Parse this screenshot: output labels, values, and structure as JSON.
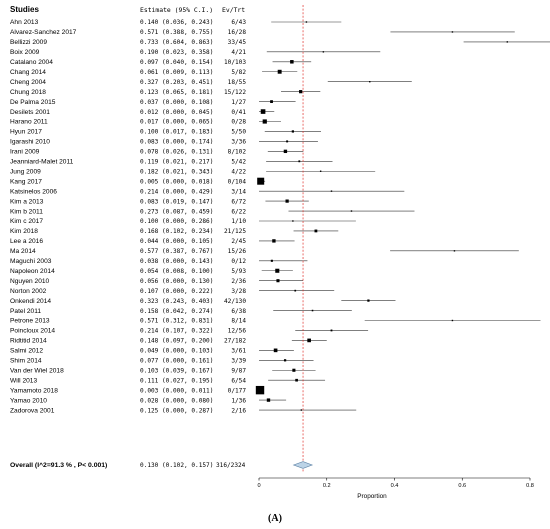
{
  "chart_data": {
    "type": "forest",
    "headers": {
      "studies": "Studies",
      "estimate": "Estimate (95% C.I.)",
      "evtrt": "Ev/Trt"
    },
    "studies": [
      {
        "name": "Ahn 2013",
        "est": 0.14,
        "lo": 0.036,
        "hi": 0.243,
        "ev": "6/43",
        "w": 1
      },
      {
        "name": "Alvarez-Sanchez 2017",
        "est": 0.571,
        "lo": 0.388,
        "hi": 0.755,
        "ev": "16/28",
        "w": 1
      },
      {
        "name": "Bellizzi 2009",
        "est": 0.733,
        "lo": 0.604,
        "hi": 0.863,
        "ev": "33/45",
        "w": 1
      },
      {
        "name": "Boix 2009",
        "est": 0.19,
        "lo": 0.023,
        "hi": 0.358,
        "ev": "4/21",
        "w": 1
      },
      {
        "name": "Catalano 2004",
        "est": 0.097,
        "lo": 0.04,
        "hi": 0.154,
        "ev": "10/103",
        "w": 2.5
      },
      {
        "name": "Chang 2014",
        "est": 0.061,
        "lo": 0.009,
        "hi": 0.113,
        "ev": "5/82",
        "w": 2.8
      },
      {
        "name": "Cheng 2004",
        "est": 0.327,
        "lo": 0.203,
        "hi": 0.451,
        "ev": "18/55",
        "w": 1
      },
      {
        "name": "Chung 2018",
        "est": 0.123,
        "lo": 0.065,
        "hi": 0.181,
        "ev": "15/122",
        "w": 2.3
      },
      {
        "name": "De Palma 2015",
        "est": 0.037,
        "lo": 0.0,
        "hi": 0.108,
        "ev": "1/27",
        "w": 2
      },
      {
        "name": "Desilets 2001",
        "est": 0.012,
        "lo": 0.0,
        "hi": 0.045,
        "ev": "0/41",
        "w": 3.3
      },
      {
        "name": "Harano 2011",
        "est": 0.017,
        "lo": 0.0,
        "hi": 0.065,
        "ev": "0/28",
        "w": 3
      },
      {
        "name": "Hyun 2017",
        "est": 0.1,
        "lo": 0.017,
        "hi": 0.183,
        "ev": "5/50",
        "w": 1.6
      },
      {
        "name": "Igarashi 2010",
        "est": 0.083,
        "lo": 0.0,
        "hi": 0.174,
        "ev": "3/36",
        "w": 1.4
      },
      {
        "name": "Irani 2009",
        "est": 0.078,
        "lo": 0.026,
        "hi": 0.131,
        "ev": "8/102",
        "w": 2.4
      },
      {
        "name": "Jeanniard-Malet 2011",
        "est": 0.119,
        "lo": 0.021,
        "hi": 0.217,
        "ev": "5/42",
        "w": 1.3
      },
      {
        "name": "Jung 2009",
        "est": 0.182,
        "lo": 0.021,
        "hi": 0.343,
        "ev": "4/22",
        "w": 1
      },
      {
        "name": "Kang 2017",
        "est": 0.005,
        "lo": 0.0,
        "hi": 0.018,
        "ev": "0/104",
        "w": 5
      },
      {
        "name": "Katsinelos 2006",
        "est": 0.214,
        "lo": 0.0,
        "hi": 0.429,
        "ev": "3/14",
        "w": 1
      },
      {
        "name": "Kim a 2013",
        "est": 0.083,
        "lo": 0.019,
        "hi": 0.147,
        "ev": "6/72",
        "w": 2.3
      },
      {
        "name": "Kim b 2011",
        "est": 0.273,
        "lo": 0.087,
        "hi": 0.459,
        "ev": "6/22",
        "w": 1
      },
      {
        "name": "Kim c 2017",
        "est": 0.1,
        "lo": 0.0,
        "hi": 0.286,
        "ev": "1/10",
        "w": 1
      },
      {
        "name": "Kim 2018",
        "est": 0.168,
        "lo": 0.102,
        "hi": 0.234,
        "ev": "21/125",
        "w": 2
      },
      {
        "name": "Lee a 2016",
        "est": 0.044,
        "lo": 0.0,
        "hi": 0.105,
        "ev": "2/45",
        "w": 2.4
      },
      {
        "name": "Ma 2014",
        "est": 0.577,
        "lo": 0.387,
        "hi": 0.767,
        "ev": "15/26",
        "w": 1
      },
      {
        "name": "Maguchi 2003",
        "est": 0.038,
        "lo": 0.0,
        "hi": 0.143,
        "ev": "0/12",
        "w": 1.5
      },
      {
        "name": "Napoleon 2014",
        "est": 0.054,
        "lo": 0.008,
        "hi": 0.1,
        "ev": "5/93",
        "w": 2.9
      },
      {
        "name": "Nguyen 2010",
        "est": 0.056,
        "lo": 0.0,
        "hi": 0.13,
        "ev": "2/36",
        "w": 2.2
      },
      {
        "name": "Norton 2002",
        "est": 0.107,
        "lo": 0.0,
        "hi": 0.222,
        "ev": "3/28",
        "w": 1.2
      },
      {
        "name": "Onkendi 2014",
        "est": 0.323,
        "lo": 0.243,
        "hi": 0.403,
        "ev": "42/130",
        "w": 1.6
      },
      {
        "name": "Patel 2011",
        "est": 0.158,
        "lo": 0.042,
        "hi": 0.274,
        "ev": "6/38",
        "w": 1.1
      },
      {
        "name": "Petrone 2013",
        "est": 0.571,
        "lo": 0.312,
        "hi": 0.831,
        "ev": "8/14",
        "w": 1
      },
      {
        "name": "Poincloux 2014",
        "est": 0.214,
        "lo": 0.107,
        "hi": 0.322,
        "ev": "12/56",
        "w": 1.3
      },
      {
        "name": "Ridtitid 2014",
        "est": 0.148,
        "lo": 0.097,
        "hi": 0.2,
        "ev": "27/182",
        "w": 2.6
      },
      {
        "name": "Salmi 2012",
        "est": 0.049,
        "lo": 0.0,
        "hi": 0.103,
        "ev": "3/61",
        "w": 2.6
      },
      {
        "name": "Shim 2014",
        "est": 0.077,
        "lo": 0.0,
        "hi": 0.161,
        "ev": "3/39",
        "w": 1.6
      },
      {
        "name": "Van der Wiel 2018",
        "est": 0.103,
        "lo": 0.039,
        "hi": 0.167,
        "ev": "9/87",
        "w": 2.2
      },
      {
        "name": "Will 2013",
        "est": 0.111,
        "lo": 0.027,
        "hi": 0.195,
        "ev": "6/54",
        "w": 1.9
      },
      {
        "name": "Yamamoto 2018",
        "est": 0.003,
        "lo": 0.0,
        "hi": 0.011,
        "ev": "0/177",
        "w": 6
      },
      {
        "name": "Yamao 2010",
        "est": 0.028,
        "lo": 0.0,
        "hi": 0.08,
        "ev": "1/36",
        "w": 2.4
      },
      {
        "name": "Zadorova 2001",
        "est": 0.125,
        "lo": 0.0,
        "hi": 0.287,
        "ev": "2/16",
        "w": 1
      }
    ],
    "overall": {
      "label": "Overall (I^2=91.3 % , P< 0.001)",
      "est": 0.13,
      "lo": 0.102,
      "hi": 0.157,
      "estimate_text": "0.130 (0.102, 0.157)",
      "ev": "316/2324"
    },
    "x_axis": {
      "min": 0,
      "max": 0.8,
      "ticks": [
        0,
        0.2,
        0.4,
        0.6,
        0.8
      ],
      "tick_labels": [
        "0",
        "0.2",
        "0.4",
        "0.6",
        "0.8"
      ],
      "label": "Proportion"
    },
    "reference_line": 0.13,
    "colors": {
      "ref_line": "#e0302a",
      "diamond_fill": "#bcd3e6",
      "diamond_stroke": "#5a7fa3",
      "marks": "#000000"
    },
    "panel_label": "(A)"
  }
}
